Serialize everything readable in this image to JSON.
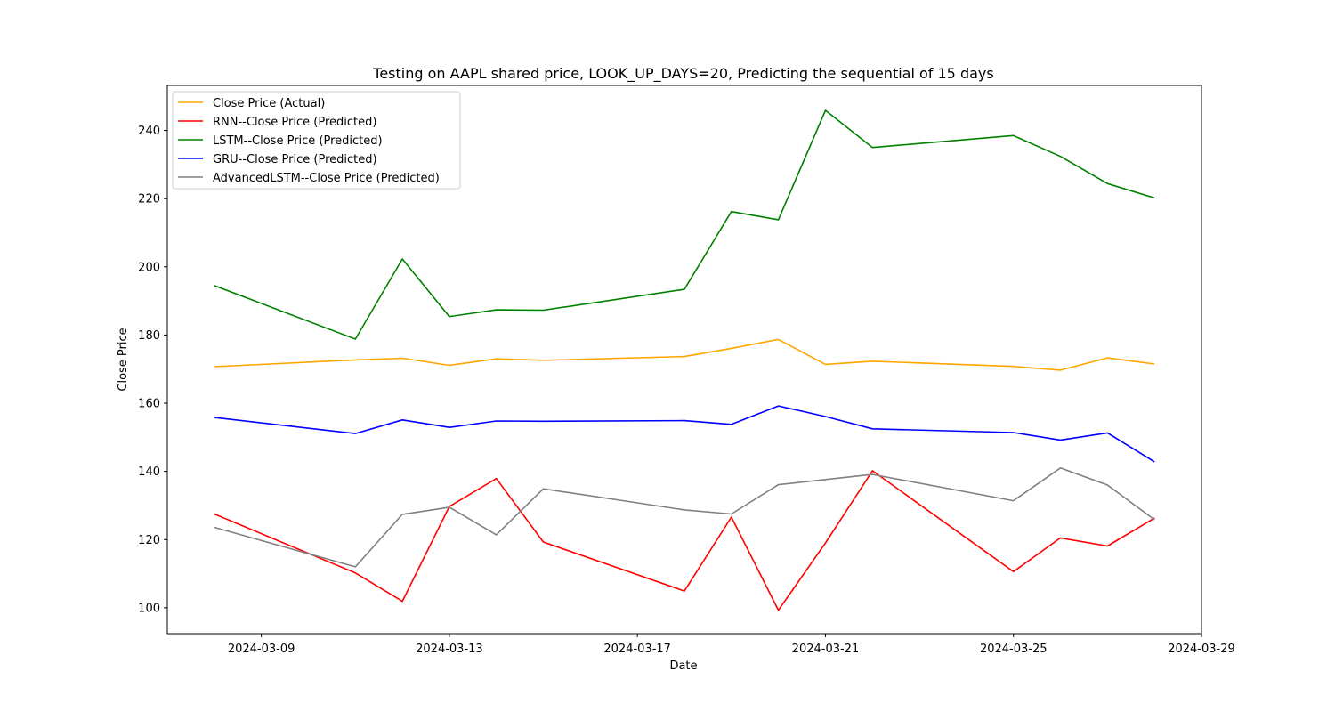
{
  "chart_data": {
    "type": "line",
    "title": "Testing on AAPL shared price, LOOK_UP_DAYS=20, Predicting the sequential of 15 days",
    "xlabel": "Date",
    "ylabel": "Close Price",
    "x": [
      "2024-03-08",
      "2024-03-11",
      "2024-03-12",
      "2024-03-13",
      "2024-03-14",
      "2024-03-15",
      "2024-03-18",
      "2024-03-19",
      "2024-03-20",
      "2024-03-21",
      "2024-03-22",
      "2024-03-25",
      "2024-03-26",
      "2024-03-27",
      "2024-03-28"
    ],
    "xlim": [
      "2024-03-07",
      "2024-03-29"
    ],
    "xticks": [
      "2024-03-09",
      "2024-03-13",
      "2024-03-17",
      "2024-03-21",
      "2024-03-25",
      "2024-03-29"
    ],
    "ylim": [
      92.4,
      253.2
    ],
    "yticks": [
      100,
      120,
      140,
      160,
      180,
      200,
      220,
      240
    ],
    "grid": false,
    "legend_position": "top-left",
    "series": [
      {
        "name": "Close Price (Actual)",
        "color": "#ffa500",
        "values": [
          170.7,
          172.7,
          173.2,
          171.1,
          173.0,
          172.6,
          173.7,
          176.1,
          178.7,
          171.4,
          172.3,
          170.8,
          169.7,
          173.3,
          171.5
        ]
      },
      {
        "name": "RNN--Close Price (Predicted)",
        "color": "#ff0000",
        "values": [
          127.5,
          110.2,
          101.9,
          129.7,
          137.9,
          119.3,
          104.9,
          126.6,
          99.3,
          119.0,
          140.2,
          110.6,
          120.5,
          118.1,
          126.3
        ]
      },
      {
        "name": "LSTM--Close Price (Predicted)",
        "color": "#008000",
        "values": [
          194.5,
          178.8,
          202.3,
          185.4,
          187.4,
          187.3,
          193.4,
          216.2,
          213.8,
          245.9,
          235.0,
          238.5,
          232.4,
          224.4,
          220.2
        ]
      },
      {
        "name": "GRU--Close Price (Predicted)",
        "color": "#0000ff",
        "values": [
          155.8,
          151.1,
          155.1,
          152.9,
          154.8,
          154.7,
          154.9,
          153.8,
          159.2,
          156.1,
          152.5,
          151.4,
          149.2,
          151.3,
          142.8
        ]
      },
      {
        "name": "AdvancedLSTM--Close Price (Predicted)",
        "color": "#808080",
        "values": [
          123.6,
          112.0,
          127.4,
          129.5,
          121.4,
          134.9,
          128.7,
          127.5,
          136.1,
          137.6,
          139.1,
          131.4,
          141.0,
          136.0,
          125.8
        ]
      }
    ]
  }
}
